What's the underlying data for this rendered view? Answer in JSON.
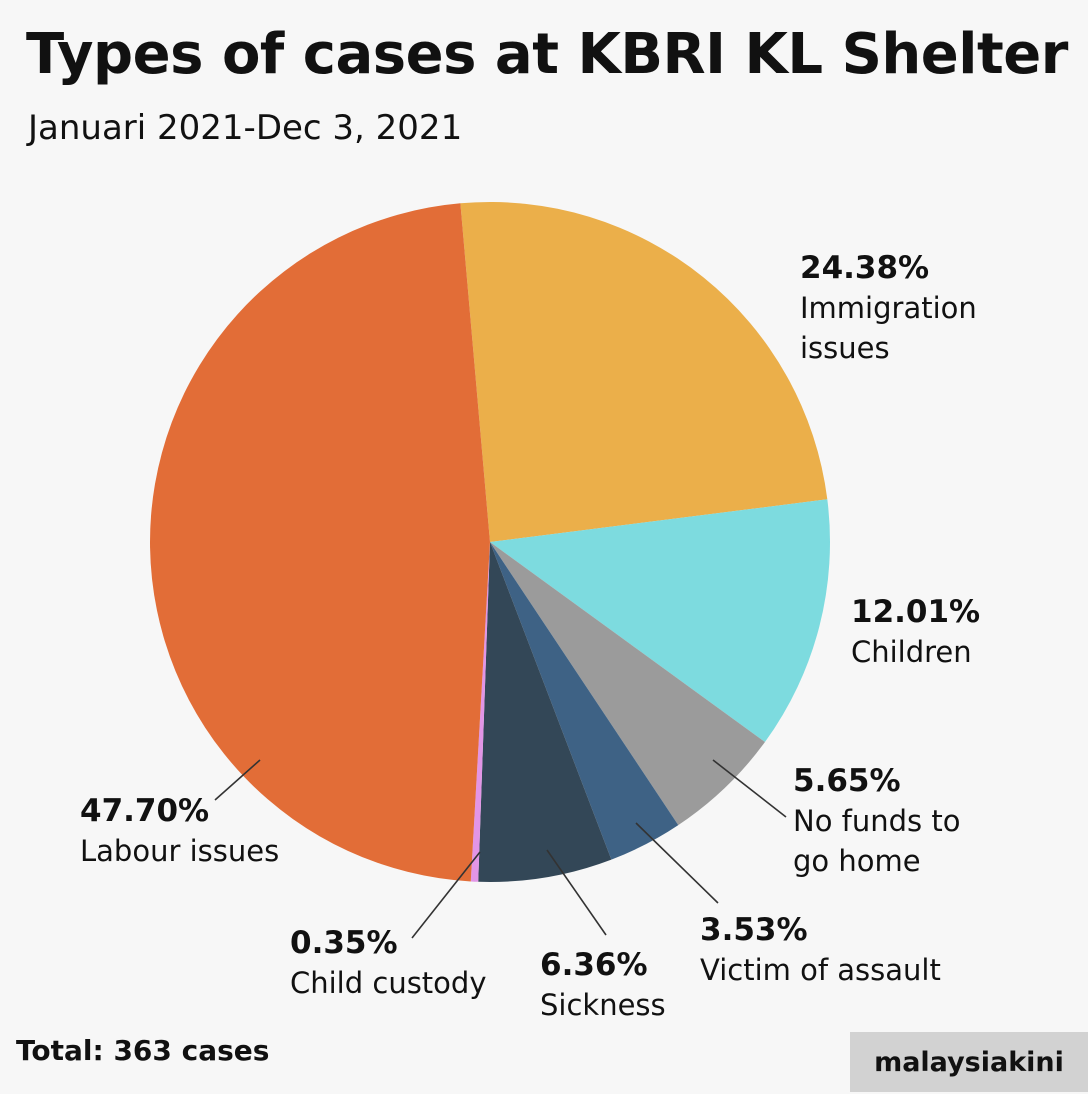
{
  "header": {
    "title": "Types of cases at KBRI KL Shelter",
    "subtitle": "Januari 2021-Dec 3, 2021"
  },
  "footer": {
    "total": "Total: 363 cases",
    "brand": "malaysiakini"
  },
  "chart_data": {
    "type": "pie",
    "title": "Types of cases at KBRI KL Shelter",
    "subtitle": "Januari 2021-Dec 3, 2021",
    "start_angle_deg": -5,
    "direction": "clockwise",
    "slices": [
      {
        "label": "Immigration issues",
        "label_lines": [
          "Immigration",
          "issues"
        ],
        "value": 24.38,
        "value_label": "24.38%",
        "color": "#EBAF4A"
      },
      {
        "label": "Children",
        "label_lines": [
          "Children"
        ],
        "value": 12.01,
        "value_label": "12.01%",
        "color": "#7DDBDF"
      },
      {
        "label": "No funds to go home",
        "label_lines": [
          "No funds to",
          "go home"
        ],
        "value": 5.65,
        "value_label": "5.65%",
        "color": "#9B9B9B"
      },
      {
        "label": "Victim of assault",
        "label_lines": [
          "Victim of assault"
        ],
        "value": 3.53,
        "value_label": "3.53%",
        "color": "#3E6285"
      },
      {
        "label": "Sickness",
        "label_lines": [
          "Sickness"
        ],
        "value": 6.36,
        "value_label": "6.36%",
        "color": "#334757"
      },
      {
        "label": "Child custody",
        "label_lines": [
          "Child custody"
        ],
        "value": 0.35,
        "value_label": "0.35%",
        "color": "#E295E6"
      },
      {
        "label": "Labour issues",
        "label_lines": [
          "Labour issues"
        ],
        "value": 47.7,
        "value_label": "47.70%",
        "color": "#E26D37"
      }
    ],
    "total": 363
  }
}
